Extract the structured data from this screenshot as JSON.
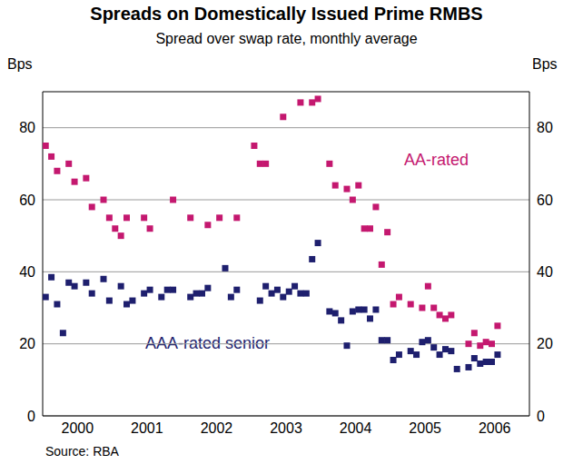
{
  "chart_data": {
    "type": "scatter",
    "title": "Spreads on Domestically Issued Prime RMBS",
    "subtitle": "Spread over swap rate, monthly average",
    "y_label": "Bps",
    "y2_label": "Bps",
    "source": "Source: RBA",
    "xlim": [
      2000,
      2007
    ],
    "xticks": [
      {
        "value": 2000.5,
        "label": "2000"
      },
      {
        "value": 2001.5,
        "label": "2001"
      },
      {
        "value": 2002.5,
        "label": "2002"
      },
      {
        "value": 2003.5,
        "label": "2003"
      },
      {
        "value": 2004.5,
        "label": "2004"
      },
      {
        "value": 2005.5,
        "label": "2005"
      },
      {
        "value": 2006.5,
        "label": "2006"
      }
    ],
    "ylim": [
      0,
      90
    ],
    "yticks": [
      0,
      20,
      40,
      60,
      80
    ],
    "y2lim": [
      0,
      90
    ],
    "y2ticks": [
      0,
      20,
      40,
      60,
      80
    ],
    "grid": true,
    "series": [
      {
        "name": "AA-rated",
        "color": "#c4186f",
        "marker": "square",
        "x": [
          2000.042,
          2000.125,
          2000.208,
          2000.375,
          2000.458,
          2000.625,
          2000.708,
          2000.875,
          2000.958,
          2001.042,
          2001.125,
          2001.208,
          2001.458,
          2001.542,
          2001.875,
          2002.125,
          2002.375,
          2002.542,
          2002.792,
          2003.042,
          2003.125,
          2003.208,
          2003.458,
          2003.708,
          2003.875,
          2003.958,
          2004.125,
          2004.208,
          2004.375,
          2004.458,
          2004.542,
          2004.625,
          2004.708,
          2004.792,
          2004.875,
          2004.958,
          2005.042,
          2005.125,
          2005.292,
          2005.458,
          2005.542,
          2005.625,
          2005.708,
          2005.792,
          2005.875,
          2006.125,
          2006.208,
          2006.292,
          2006.375,
          2006.458,
          2006.542
        ],
        "values": [
          75,
          72,
          68,
          70,
          65,
          66,
          58,
          60,
          55,
          52,
          50,
          55,
          55,
          52,
          60,
          55,
          53,
          55,
          55,
          75,
          70,
          70,
          83,
          87,
          87,
          88,
          70,
          64,
          63,
          60,
          64,
          52,
          52,
          58,
          42,
          51,
          31,
          33,
          31,
          30,
          36,
          30,
          28,
          27,
          28,
          20,
          23,
          19.5,
          20.5,
          20,
          25
        ]
      },
      {
        "name": "AAA-rated senior",
        "color": "#1e1f6e",
        "marker": "square",
        "x": [
          2000.042,
          2000.125,
          2000.208,
          2000.292,
          2000.375,
          2000.458,
          2000.625,
          2000.708,
          2000.875,
          2000.958,
          2001.125,
          2001.208,
          2001.292,
          2001.458,
          2001.542,
          2001.708,
          2001.792,
          2001.875,
          2002.125,
          2002.208,
          2002.292,
          2002.375,
          2002.625,
          2002.708,
          2002.792,
          2003.125,
          2003.208,
          2003.292,
          2003.375,
          2003.458,
          2003.542,
          2003.625,
          2003.708,
          2003.792,
          2003.875,
          2003.958,
          2004.125,
          2004.208,
          2004.292,
          2004.375,
          2004.458,
          2004.542,
          2004.625,
          2004.708,
          2004.792,
          2004.875,
          2004.958,
          2005.042,
          2005.125,
          2005.292,
          2005.375,
          2005.458,
          2005.542,
          2005.625,
          2005.708,
          2005.792,
          2005.875,
          2005.958,
          2006.125,
          2006.208,
          2006.292,
          2006.375,
          2006.458,
          2006.542
        ],
        "values": [
          33,
          38.5,
          31,
          23,
          37,
          36,
          37,
          34,
          38,
          32,
          36,
          31,
          32,
          34,
          35,
          33,
          35,
          35,
          33,
          34,
          34,
          35.5,
          41,
          33,
          35,
          32,
          36,
          34,
          35,
          33,
          34.5,
          36,
          34,
          34,
          43.5,
          48,
          29,
          28.5,
          26.5,
          19.5,
          29,
          29.5,
          29.5,
          27,
          29.5,
          21,
          21,
          15.5,
          17,
          18,
          17,
          20.5,
          21,
          19,
          17,
          18.5,
          18,
          13,
          13.5,
          16,
          14.5,
          15,
          15,
          17
        ]
      }
    ]
  }
}
